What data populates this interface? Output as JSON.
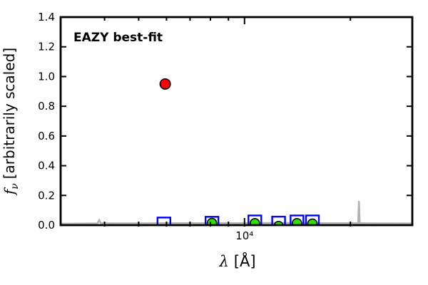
{
  "figure": {
    "background": "#ffffff",
    "axis_color": "#000000"
  },
  "chart_data": {
    "type": "scatter",
    "title": "",
    "x_scale": "log",
    "xlim": [
      3000,
      30000
    ],
    "ylim": [
      0.0,
      1.4
    ],
    "grid": false,
    "xlabel": "λ [Å]",
    "xlabel_parts": {
      "symbol": "λ",
      "unit": "[Å]"
    },
    "ylabel": "fν [arbitrarily scaled]",
    "ylabel_parts": {
      "symbol": "f",
      "subscript": "ν",
      "rest": "[arbitrarily scaled]"
    },
    "annotation": {
      "text": "EAZY best-fit",
      "color": "#ff0000"
    },
    "x_major_ticks": [
      {
        "value": 10000,
        "label": "10⁴"
      }
    ],
    "x_minor_tick_values": [
      4000,
      5000,
      6000,
      7000,
      8000,
      9000,
      20000
    ],
    "y_ticks": [
      {
        "value": 0.0,
        "label": "0.0"
      },
      {
        "value": 0.2,
        "label": "0.2"
      },
      {
        "value": 0.4,
        "label": "0.4"
      },
      {
        "value": 0.6,
        "label": "0.6"
      },
      {
        "value": 0.8,
        "label": "0.8"
      },
      {
        "value": 1.0,
        "label": "1.0"
      },
      {
        "value": 1.2,
        "label": "1.2"
      },
      {
        "value": 1.4,
        "label": "1.4"
      }
    ],
    "series": [
      {
        "name": "model-spectrum",
        "type": "line",
        "color": "#b3b3b3",
        "points": [
          [
            3000,
            0.009
          ],
          [
            3300,
            0.01
          ],
          [
            3600,
            0.011
          ],
          [
            3820,
            0.012
          ],
          [
            3860,
            0.034
          ],
          [
            3900,
            0.013
          ],
          [
            4200,
            0.012
          ],
          [
            5000,
            0.012
          ],
          [
            6000,
            0.013
          ],
          [
            7000,
            0.013
          ],
          [
            8000,
            0.013
          ],
          [
            9000,
            0.013
          ],
          [
            10000,
            0.013
          ],
          [
            12000,
            0.014
          ],
          [
            14000,
            0.014
          ],
          [
            16000,
            0.013
          ],
          [
            18000,
            0.013
          ],
          [
            21050,
            0.013
          ],
          [
            21150,
            0.163
          ],
          [
            21250,
            0.013
          ],
          [
            24000,
            0.012
          ],
          [
            27000,
            0.012
          ],
          [
            30000,
            0.011
          ]
        ]
      },
      {
        "name": "observed-photometry",
        "type": "scatter",
        "marker": "open-square",
        "color": "#0000ff",
        "points": [
          [
            5900,
            0.008
          ],
          [
            8080,
            0.013
          ],
          [
            10700,
            0.022
          ],
          [
            12500,
            0.014
          ],
          [
            14100,
            0.022
          ],
          [
            15600,
            0.022
          ]
        ]
      },
      {
        "name": "template-photometry",
        "type": "scatter",
        "marker": "filled-circle",
        "fill": "#2ee000",
        "edge": "#000000",
        "points": [
          [
            8080,
            0.014
          ],
          [
            10700,
            0.013
          ],
          [
            12500,
            -0.006
          ],
          [
            14100,
            0.013
          ],
          [
            15600,
            0.01
          ]
        ]
      },
      {
        "name": "best-fit-point",
        "type": "scatter",
        "marker": "filled-circle",
        "fill": "#ff0000",
        "edge": "#000000",
        "points": [
          [
            5950,
            0.95
          ]
        ]
      }
    ]
  }
}
